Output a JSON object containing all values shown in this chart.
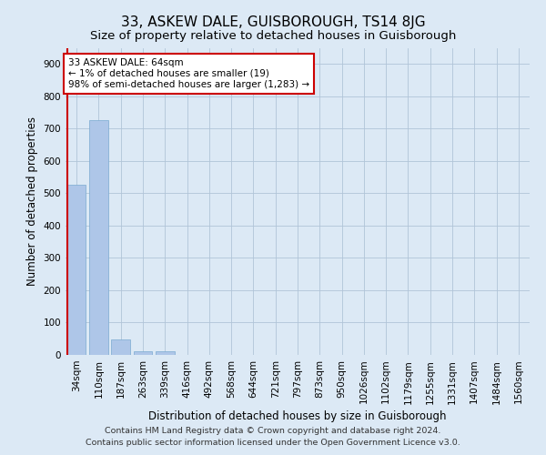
{
  "title": "33, ASKEW DALE, GUISBOROUGH, TS14 8JG",
  "subtitle": "Size of property relative to detached houses in Guisborough",
  "xlabel": "Distribution of detached houses by size in Guisborough",
  "ylabel": "Number of detached properties",
  "footnote1": "Contains HM Land Registry data © Crown copyright and database right 2024.",
  "footnote2": "Contains public sector information licensed under the Open Government Licence v3.0.",
  "bar_labels": [
    "34sqm",
    "110sqm",
    "187sqm",
    "263sqm",
    "339sqm",
    "416sqm",
    "492sqm",
    "568sqm",
    "644sqm",
    "721sqm",
    "797sqm",
    "873sqm",
    "950sqm",
    "1026sqm",
    "1102sqm",
    "1179sqm",
    "1255sqm",
    "1331sqm",
    "1407sqm",
    "1484sqm",
    "1560sqm"
  ],
  "bar_heights": [
    525,
    725,
    47,
    11,
    11,
    0,
    0,
    0,
    0,
    0,
    0,
    0,
    0,
    0,
    0,
    0,
    0,
    0,
    0,
    0,
    0
  ],
  "bar_color": "#aec6e8",
  "bar_edge_color": "#7aaad0",
  "background_color": "#dce9f5",
  "grid_color": "#b0c4d8",
  "annotation_line1": "33 ASKEW DALE: 64sqm",
  "annotation_line2": "← 1% of detached houses are smaller (19)",
  "annotation_line3": "98% of semi-detached houses are larger (1,283) →",
  "annotation_box_color": "#ffffff",
  "annotation_border_color": "#cc0000",
  "property_line_color": "#cc0000",
  "ylim": [
    0,
    950
  ],
  "yticks": [
    0,
    100,
    200,
    300,
    400,
    500,
    600,
    700,
    800,
    900
  ],
  "title_fontsize": 11,
  "subtitle_fontsize": 9.5,
  "axis_label_fontsize": 8.5,
  "tick_fontsize": 7.5,
  "annotation_fontsize": 7.5,
  "footnote_fontsize": 6.8
}
